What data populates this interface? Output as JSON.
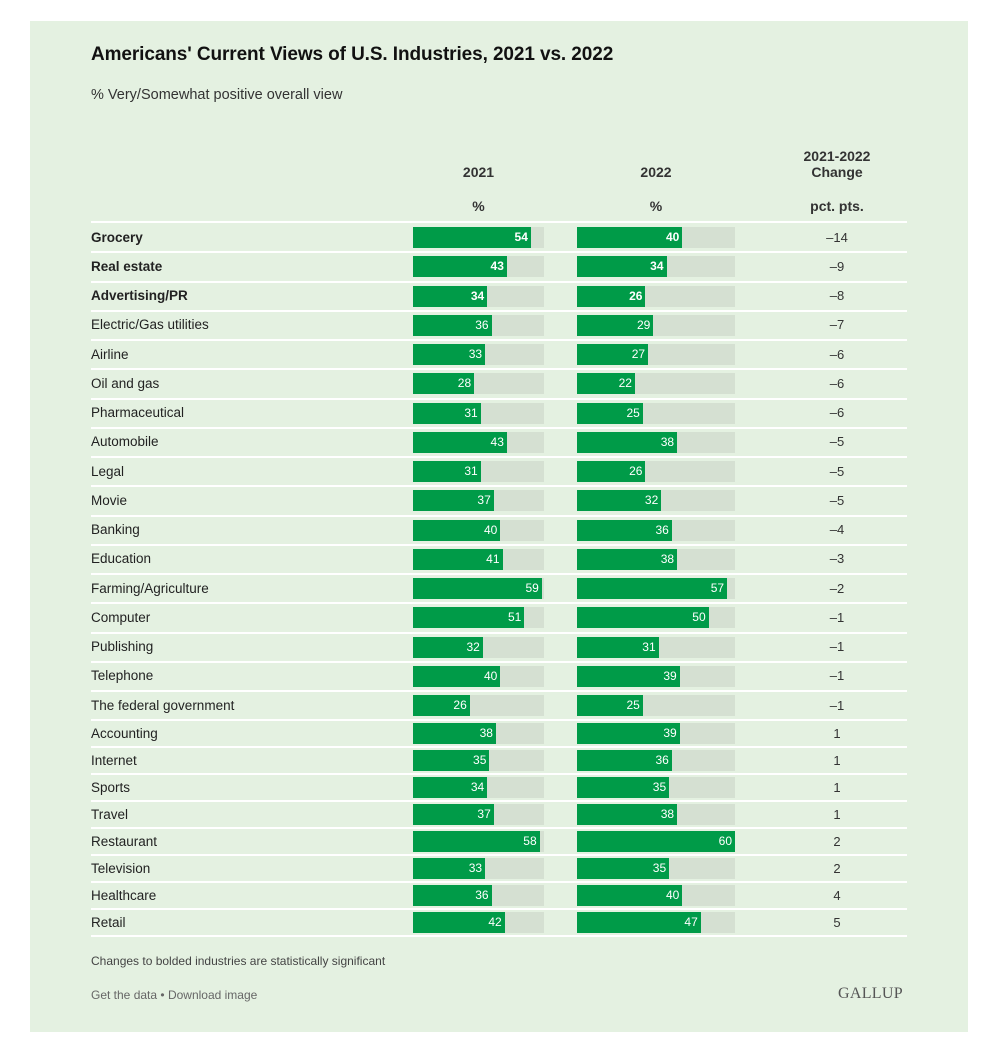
{
  "header": {
    "title": "Americans' Current Views of U.S. Industries, 2021 vs. 2022",
    "subtitle": "% Very/Somewhat positive overall view"
  },
  "columns": {
    "c2021": {
      "label": "2021",
      "unit": "%"
    },
    "c2022": {
      "label": "2022",
      "unit": "%"
    },
    "change": {
      "label_line1": "2021-2022",
      "label_line2": "Change",
      "unit": "pct. pts."
    }
  },
  "colors": {
    "bar": "#009b48",
    "track": "#d5e0d2",
    "background": "#e4f1e1"
  },
  "footer": {
    "note": "Changes to bolded industries are statistically significant",
    "get_data": "Get the data",
    "separator": "•",
    "download": "Download image",
    "brand": "GALLUP"
  },
  "chart_data": {
    "type": "bar",
    "title": "Americans' Current Views of U.S. Industries, 2021 vs. 2022",
    "subtitle": "% Very/Somewhat positive overall view",
    "xlabel": "",
    "ylabel": "%",
    "xlim": [
      0,
      60
    ],
    "grid": false,
    "legend": "none",
    "categories": [
      "Grocery",
      "Real estate",
      "Advertising/PR",
      "Electric/Gas utilities",
      "Airline",
      "Oil and gas",
      "Pharmaceutical",
      "Automobile",
      "Legal",
      "Movie",
      "Banking",
      "Education",
      "Farming/Agriculture",
      "Computer",
      "Publishing",
      "Telephone",
      "The federal government",
      "Accounting",
      "Internet",
      "Sports",
      "Travel",
      "Restaurant",
      "Television",
      "Healthcare",
      "Retail"
    ],
    "bold": [
      true,
      true,
      true,
      false,
      false,
      false,
      false,
      false,
      false,
      false,
      false,
      false,
      false,
      false,
      false,
      false,
      false,
      false,
      false,
      false,
      false,
      false,
      false,
      false,
      false
    ],
    "series": [
      {
        "name": "2021",
        "values": [
          54,
          43,
          34,
          36,
          33,
          28,
          31,
          43,
          31,
          37,
          40,
          41,
          59,
          51,
          32,
          40,
          26,
          38,
          35,
          34,
          37,
          58,
          33,
          36,
          42
        ]
      },
      {
        "name": "2022",
        "values": [
          40,
          34,
          26,
          29,
          27,
          22,
          25,
          38,
          26,
          32,
          36,
          38,
          57,
          50,
          31,
          39,
          25,
          39,
          36,
          35,
          38,
          60,
          35,
          40,
          47
        ]
      }
    ],
    "change": [
      "–14",
      "–9",
      "–8",
      "–7",
      "–6",
      "–6",
      "–6",
      "–5",
      "–5",
      "–5",
      "–4",
      "–3",
      "–2",
      "–1",
      "–1",
      "–1",
      "–1",
      "1",
      "1",
      "1",
      "1",
      "2",
      "2",
      "4",
      "5"
    ],
    "note": "Changes to bolded industries are statistically significant"
  }
}
